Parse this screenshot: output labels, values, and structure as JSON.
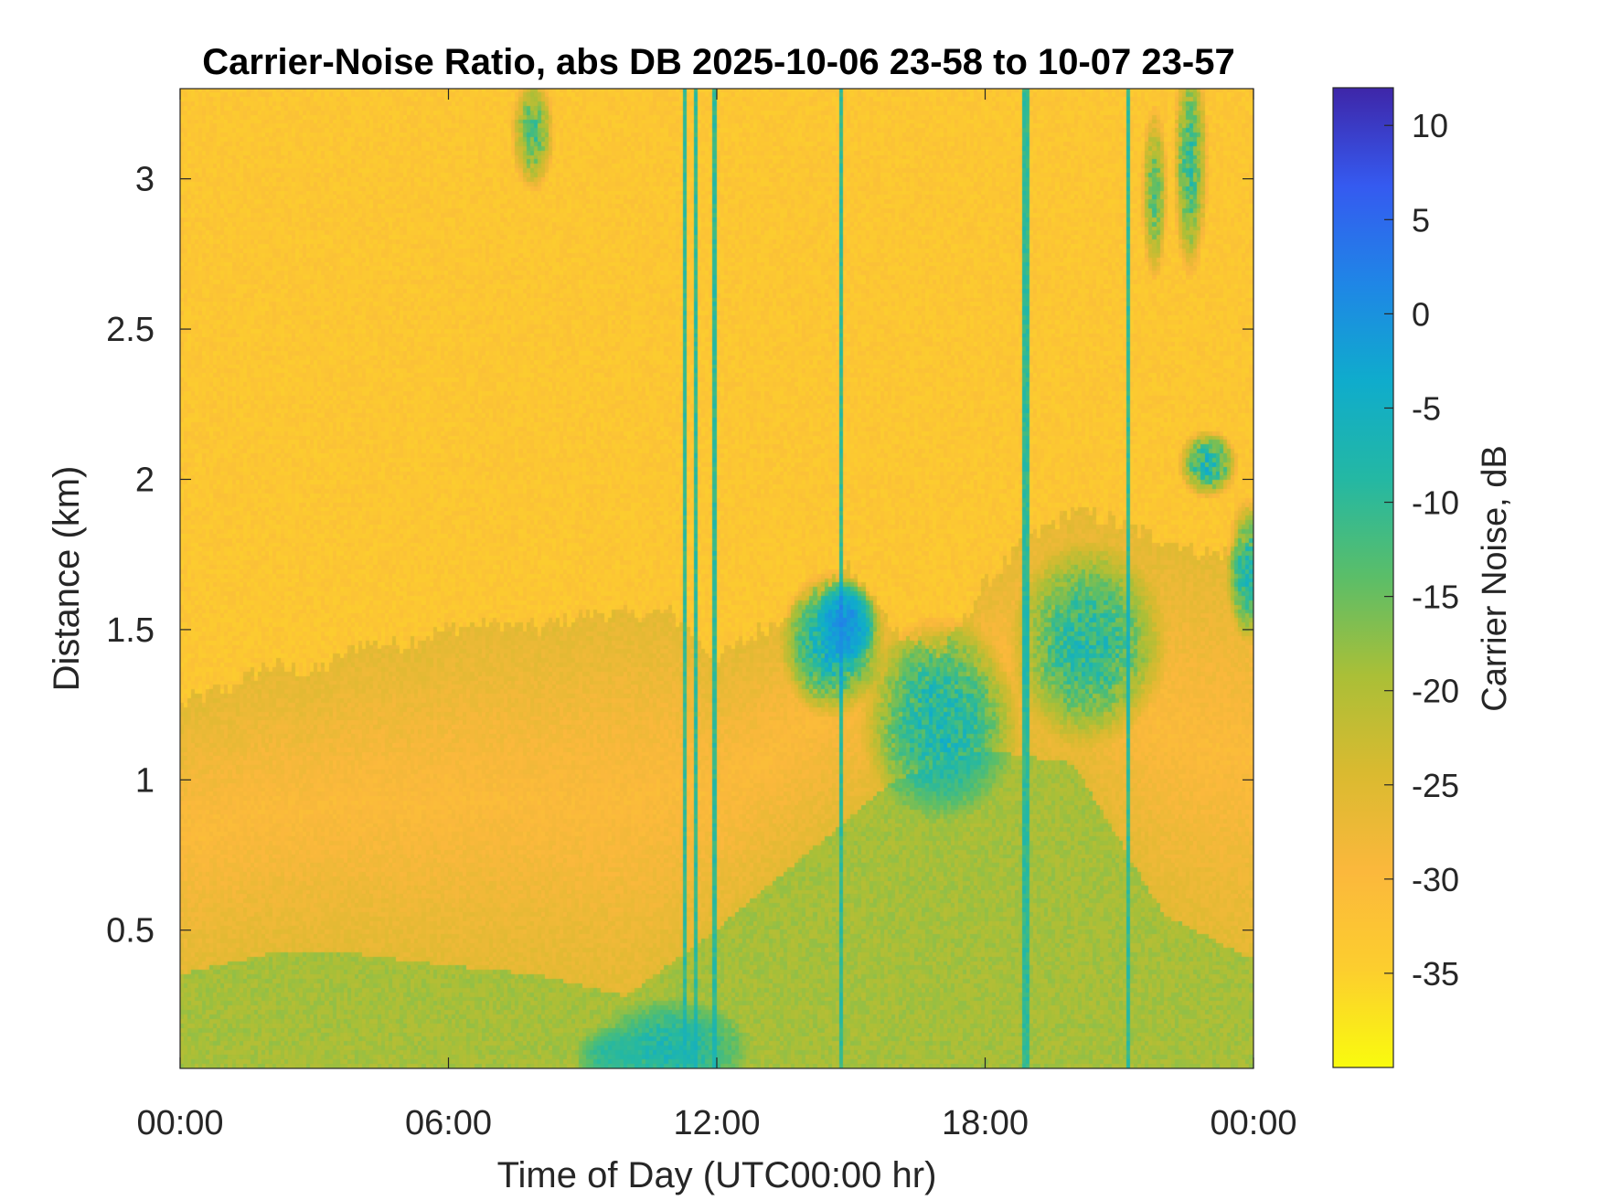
{
  "chart_data": {
    "type": "heatmap",
    "title": "Carrier-Noise Ratio, abs DB 2025-10-06 23-58 to 10-07 23-57",
    "xlabel": "Time of Day (UTC00:00 hr)",
    "ylabel": "Distance (km)",
    "x_ticks": [
      {
        "value": 0,
        "label": "00:00"
      },
      {
        "value": 6,
        "label": "06:00"
      },
      {
        "value": 12,
        "label": "12:00"
      },
      {
        "value": 18,
        "label": "18:00"
      },
      {
        "value": 24,
        "label": "00:00"
      }
    ],
    "y_ticks": [
      {
        "value": 0.5,
        "label": "0.5"
      },
      {
        "value": 1,
        "label": "1"
      },
      {
        "value": 1.5,
        "label": "1.5"
      },
      {
        "value": 2,
        "label": "2"
      },
      {
        "value": 2.5,
        "label": "2.5"
      },
      {
        "value": 3,
        "label": "3"
      }
    ],
    "xlim": [
      0,
      24
    ],
    "ylim": [
      0.04,
      3.3
    ],
    "colorbar": {
      "label": "Carrier Noise, dB",
      "limits": [
        -40,
        12
      ],
      "ticks": [
        {
          "value": 10,
          "label": "10"
        },
        {
          "value": 5,
          "label": "5"
        },
        {
          "value": 0,
          "label": "0"
        },
        {
          "value": -5,
          "label": "-5"
        },
        {
          "value": -10,
          "label": "-10"
        },
        {
          "value": -15,
          "label": "-15"
        },
        {
          "value": -20,
          "label": "-20"
        },
        {
          "value": -25,
          "label": "-25"
        },
        {
          "value": -30,
          "label": "-30"
        },
        {
          "value": -35,
          "label": "-35"
        }
      ],
      "colormap": "parula"
    },
    "field": {
      "background_db": -33,
      "boundary_layer_top_km": [
        [
          0,
          1.25
        ],
        [
          1,
          1.3
        ],
        [
          2,
          1.38
        ],
        [
          3,
          1.35
        ],
        [
          4,
          1.45
        ],
        [
          5,
          1.45
        ],
        [
          6,
          1.5
        ],
        [
          7,
          1.52
        ],
        [
          8,
          1.5
        ],
        [
          9,
          1.55
        ],
        [
          10,
          1.55
        ],
        [
          11,
          1.55
        ],
        [
          12,
          1.4
        ],
        [
          13,
          1.5
        ],
        [
          14,
          1.6
        ],
        [
          15,
          1.7
        ],
        [
          16,
          1.5
        ],
        [
          17,
          1.4
        ],
        [
          18,
          1.65
        ],
        [
          19,
          1.8
        ],
        [
          20,
          1.9
        ],
        [
          21,
          1.85
        ],
        [
          22,
          1.8
        ],
        [
          23,
          1.75
        ],
        [
          24,
          1.75
        ]
      ],
      "surface_layer_top_km": [
        [
          0,
          0.35
        ],
        [
          2,
          0.42
        ],
        [
          4,
          0.42
        ],
        [
          6,
          0.38
        ],
        [
          8,
          0.35
        ],
        [
          10,
          0.28
        ],
        [
          12,
          0.5
        ],
        [
          14,
          0.75
        ],
        [
          16,
          1.0
        ],
        [
          18,
          1.1
        ],
        [
          20,
          1.05
        ],
        [
          22,
          0.55
        ],
        [
          24,
          0.4
        ]
      ],
      "dropout_columns_hr": [
        11.3,
        11.55,
        11.95,
        14.8,
        18.9,
        21.2
      ],
      "features": [
        {
          "x": 14.9,
          "y": 1.52,
          "db": 8,
          "w": 0.7,
          "h": 0.15
        },
        {
          "x": 14.6,
          "y": 1.45,
          "db": 0,
          "w": 1.2,
          "h": 0.25
        },
        {
          "x": 11.0,
          "y": 0.1,
          "db": -5,
          "w": 1.8,
          "h": 0.18
        },
        {
          "x": 9.6,
          "y": 0.08,
          "db": -8,
          "w": 0.8,
          "h": 0.1
        },
        {
          "x": 23.0,
          "y": 2.05,
          "db": -2,
          "w": 0.7,
          "h": 0.12
        },
        {
          "x": 22.6,
          "y": 3.05,
          "db": -6,
          "w": 0.4,
          "h": 0.4
        },
        {
          "x": 21.8,
          "y": 2.95,
          "db": -10,
          "w": 0.3,
          "h": 0.3
        },
        {
          "x": 7.9,
          "y": 3.15,
          "db": -8,
          "w": 0.5,
          "h": 0.2
        },
        {
          "x": 17.0,
          "y": 1.2,
          "db": -2,
          "w": 1.8,
          "h": 0.35
        },
        {
          "x": 20.3,
          "y": 1.45,
          "db": -4,
          "w": 1.8,
          "h": 0.35
        },
        {
          "x": 23.9,
          "y": 1.7,
          "db": -4,
          "w": 0.5,
          "h": 0.25
        }
      ]
    }
  }
}
